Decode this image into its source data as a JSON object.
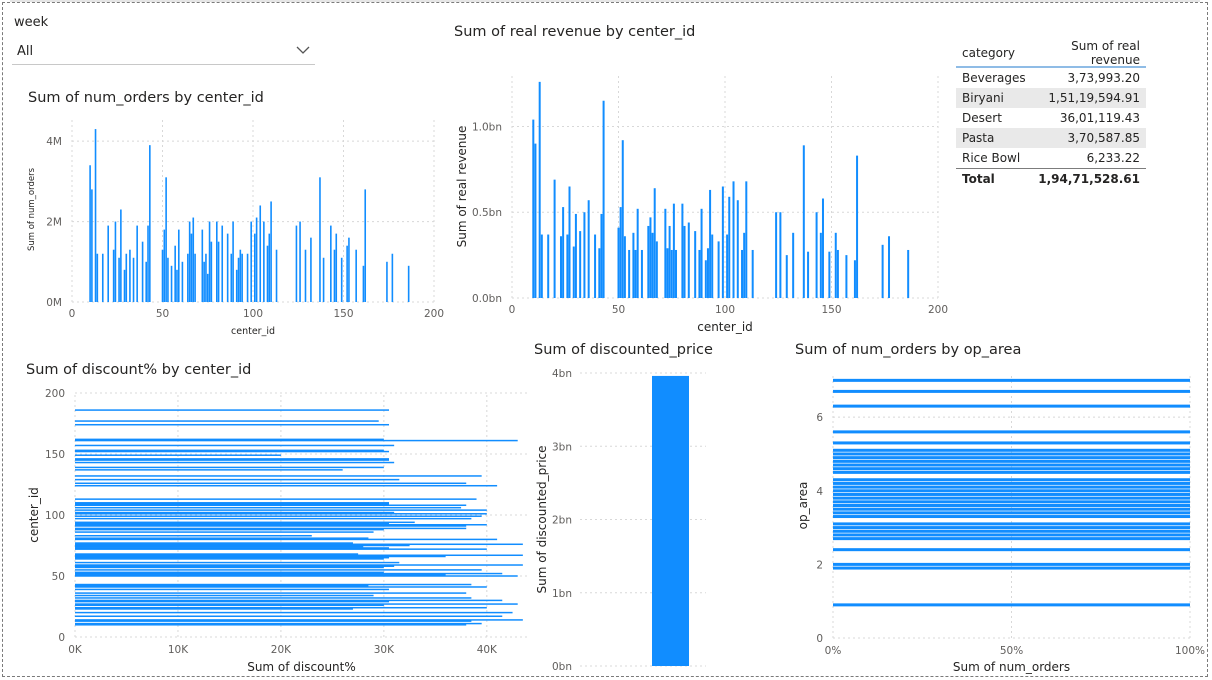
{
  "slicer": {
    "label": "week",
    "value": "All"
  },
  "colors": {
    "bar": "#118dff",
    "grid": "#d8d8d8",
    "axis_text": "#605e5c"
  },
  "table": {
    "headers": [
      "category",
      "Sum of real revenue"
    ],
    "rows": [
      [
        "Beverages",
        "3,73,993.20"
      ],
      [
        "Biryani",
        "1,51,19,594.91"
      ],
      [
        "Desert",
        "36,01,119.43"
      ],
      [
        "Pasta",
        "3,70,587.85"
      ],
      [
        "Rice Bowl",
        "6,233.22"
      ]
    ],
    "total": [
      "Total",
      "1,94,71,528.61"
    ]
  },
  "chart_data": [
    {
      "id": "orders",
      "type": "bar",
      "title": "Sum of num_orders by center_id",
      "xlabel": "center_id",
      "ylabel": "Sum of num_orders",
      "xlim": [
        0,
        200
      ],
      "ylim": [
        0,
        4600000
      ],
      "x_ticks": [
        0,
        50,
        100,
        150,
        200
      ],
      "y_ticks": [
        0,
        2000000,
        4000000
      ],
      "x_tick_labels": [
        "0",
        "50",
        "100",
        "150",
        "200"
      ],
      "y_tick_labels": [
        "0M",
        "2M",
        "4M"
      ],
      "grid": true,
      "series": [
        {
          "x": [
            10,
            11,
            13,
            14,
            17,
            20,
            23,
            24,
            26,
            27,
            29,
            30,
            32,
            34,
            36,
            39,
            41,
            42,
            43,
            50,
            51,
            52,
            53,
            55,
            57,
            58,
            59,
            61,
            64,
            65,
            66,
            67,
            68,
            72,
            73,
            74,
            75,
            76,
            77,
            80,
            81,
            83,
            86,
            88,
            89,
            91,
            92,
            93,
            94,
            97,
            99,
            101,
            102,
            104,
            106,
            108,
            109,
            110,
            113,
            124,
            126,
            129,
            132,
            137,
            139,
            143,
            145,
            146,
            149,
            152,
            153,
            157,
            161,
            162,
            174,
            177,
            186
          ],
          "y": [
            3400000,
            2800000,
            4300000,
            1200000,
            1200000,
            1900000,
            1300000,
            2000000,
            1100000,
            2300000,
            800000,
            1200000,
            1300000,
            1100000,
            1900000,
            1500000,
            1000000,
            1900000,
            3900000,
            1300000,
            1800000,
            3100000,
            1100000,
            900000,
            1400000,
            800000,
            1800000,
            1000000,
            1200000,
            2000000,
            1700000,
            2100000,
            1200000,
            1800000,
            1000000,
            1200000,
            700000,
            2000000,
            1500000,
            2000000,
            1500000,
            1900000,
            1700000,
            1200000,
            2000000,
            800000,
            1100000,
            1300000,
            1200000,
            1200000,
            2000000,
            1700000,
            2100000,
            2400000,
            2000000,
            1400000,
            1700000,
            2500000,
            1300000,
            1900000,
            2000000,
            1300000,
            1600000,
            3100000,
            1100000,
            1900000,
            1300000,
            1700000,
            1100000,
            1400000,
            1600000,
            1300000,
            900000,
            2800000,
            1000000,
            1200000,
            900000
          ]
        }
      ]
    },
    {
      "id": "revenue",
      "type": "bar",
      "title": "Sum of real revenue by center_id",
      "xlabel": "center_id",
      "ylabel": "Sum of real revenue",
      "xlim": [
        0,
        200
      ],
      "ylim": [
        0,
        1300000000
      ],
      "x_ticks": [
        0,
        50,
        100,
        150,
        200
      ],
      "y_ticks": [
        0,
        500000000,
        1000000000
      ],
      "x_tick_labels": [
        "0",
        "50",
        "100",
        "150",
        "200"
      ],
      "y_tick_labels": [
        "0.0bn",
        "0.5bn",
        "1.0bn"
      ],
      "grid": true,
      "series": [
        {
          "x": [
            10,
            11,
            13,
            14,
            17,
            20,
            23,
            24,
            26,
            27,
            29,
            30,
            32,
            34,
            36,
            39,
            41,
            42,
            43,
            50,
            51,
            52,
            53,
            55,
            57,
            58,
            59,
            61,
            64,
            65,
            66,
            67,
            68,
            72,
            73,
            74,
            75,
            76,
            77,
            80,
            81,
            83,
            86,
            88,
            89,
            91,
            92,
            93,
            94,
            97,
            99,
            101,
            102,
            104,
            106,
            108,
            109,
            110,
            113,
            124,
            126,
            129,
            132,
            137,
            139,
            143,
            145,
            146,
            149,
            152,
            153,
            157,
            161,
            162,
            174,
            177,
            186
          ],
          "y": [
            1040000000,
            900000000,
            1260000000,
            370000000,
            370000000,
            690000000,
            360000000,
            530000000,
            370000000,
            650000000,
            300000000,
            490000000,
            390000000,
            500000000,
            570000000,
            370000000,
            290000000,
            490000000,
            1150000000,
            410000000,
            530000000,
            920000000,
            360000000,
            280000000,
            380000000,
            280000000,
            520000000,
            280000000,
            420000000,
            470000000,
            380000000,
            640000000,
            330000000,
            520000000,
            290000000,
            420000000,
            280000000,
            550000000,
            280000000,
            550000000,
            420000000,
            440000000,
            390000000,
            280000000,
            520000000,
            220000000,
            290000000,
            630000000,
            370000000,
            330000000,
            650000000,
            370000000,
            590000000,
            680000000,
            570000000,
            280000000,
            380000000,
            680000000,
            280000000,
            500000000,
            500000000,
            250000000,
            380000000,
            890000000,
            270000000,
            500000000,
            380000000,
            580000000,
            270000000,
            380000000,
            280000000,
            250000000,
            220000000,
            830000000,
            310000000,
            360000000,
            280000000
          ]
        }
      ]
    },
    {
      "id": "discount",
      "type": "bar",
      "orientation": "horizontal",
      "title": "Sum of discount% by center_id",
      "xlabel": "Sum of discount%",
      "ylabel": "center_id",
      "xlim": [
        0,
        44000
      ],
      "ylim": [
        0,
        200
      ],
      "x_ticks": [
        0,
        10000,
        20000,
        30000,
        40000
      ],
      "y_ticks": [
        0,
        50,
        100,
        150,
        200
      ],
      "x_tick_labels": [
        "0K",
        "10K",
        "20K",
        "30K",
        "40K"
      ],
      "y_tick_labels": [
        "0",
        "50",
        "100",
        "150",
        "200"
      ],
      "grid": true,
      "series": [
        {
          "y": [
            10,
            11,
            13,
            14,
            17,
            20,
            23,
            24,
            26,
            27,
            29,
            30,
            32,
            34,
            36,
            39,
            41,
            42,
            43,
            50,
            51,
            52,
            53,
            55,
            57,
            58,
            59,
            61,
            64,
            65,
            66,
            67,
            68,
            72,
            73,
            74,
            75,
            76,
            77,
            80,
            81,
            83,
            86,
            88,
            89,
            91,
            92,
            93,
            94,
            97,
            99,
            101,
            102,
            104,
            106,
            108,
            109,
            110,
            113,
            124,
            126,
            129,
            132,
            137,
            139,
            143,
            145,
            146,
            149,
            152,
            153,
            157,
            161,
            162,
            174,
            177,
            186
          ],
          "x": [
            38000,
            39500,
            38500,
            43500,
            41500,
            42500,
            27000,
            40000,
            30000,
            43000,
            30500,
            41500,
            38500,
            29000,
            38000,
            30500,
            40000,
            28500,
            38500,
            43000,
            36000,
            41500,
            30000,
            39500,
            30000,
            31000,
            43500,
            31500,
            30000,
            30500,
            36000,
            43500,
            27500,
            40000,
            30500,
            28000,
            32500,
            43500,
            27000,
            41000,
            28500,
            23000,
            29000,
            30000,
            38000,
            38000,
            40000,
            30500,
            33000,
            38500,
            39500,
            40000,
            31000,
            40000,
            37500,
            38000,
            30500,
            30500,
            39000,
            41000,
            38000,
            31500,
            39500,
            26000,
            30000,
            31000,
            30500,
            30500,
            20000,
            30500,
            30000,
            31000,
            43000,
            30000,
            30500,
            29500,
            30500
          ]
        }
      ]
    },
    {
      "id": "discounted_price",
      "type": "bar",
      "title": "Sum of discounted_price",
      "ylabel": "Sum of discounted_price",
      "ylim": [
        0,
        4000000000
      ],
      "y_ticks": [
        0,
        1000000000,
        2000000000,
        3000000000,
        4000000000
      ],
      "y_tick_labels": [
        "0bn",
        "1bn",
        "2bn",
        "3bn",
        "4bn"
      ],
      "grid": true,
      "values": [
        3960000000
      ]
    },
    {
      "id": "op_area",
      "type": "bar",
      "orientation": "horizontal",
      "title": "Sum of num_orders by op_area",
      "xlabel": "Sum of num_orders",
      "ylabel": "op_area",
      "xlim": [
        0,
        100
      ],
      "ylim": [
        0,
        7.2
      ],
      "x_ticks": [
        0,
        50,
        100
      ],
      "y_ticks": [
        0,
        2,
        4,
        6
      ],
      "x_tick_labels": [
        "0%",
        "50%",
        "100%"
      ],
      "y_tick_labels": [
        "0",
        "2",
        "4",
        "6"
      ],
      "grid": true,
      "series": [
        {
          "y": [
            0.9,
            1.9,
            2.0,
            2.4,
            2.7,
            2.8,
            2.9,
            3.0,
            3.1,
            3.3,
            3.4,
            3.5,
            3.6,
            3.7,
            3.8,
            3.9,
            4.0,
            4.1,
            4.2,
            4.3,
            4.5,
            4.6,
            4.7,
            4.8,
            4.9,
            5.0,
            5.1,
            5.3,
            5.6,
            6.3,
            6.7,
            7.0
          ],
          "x": [
            100,
            100,
            100,
            100,
            100,
            100,
            100,
            100,
            100,
            100,
            100,
            100,
            100,
            100,
            100,
            100,
            100,
            100,
            100,
            100,
            100,
            100,
            100,
            100,
            100,
            100,
            100,
            100,
            100,
            100,
            100,
            100
          ]
        }
      ]
    }
  ]
}
